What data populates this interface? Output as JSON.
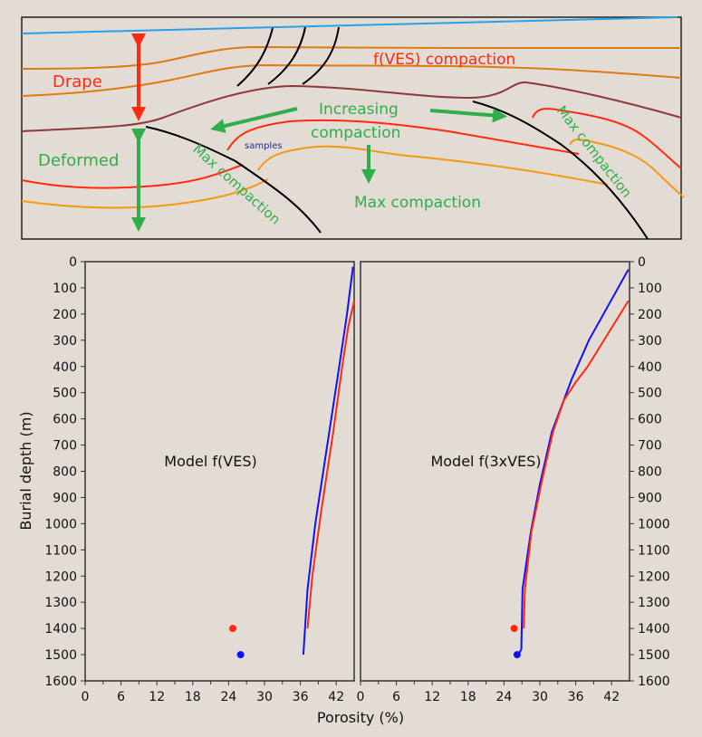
{
  "diagram": {
    "labels": {
      "drape": "Drape",
      "fves_compaction": "f(VES) compaction",
      "increasing": "Increasing",
      "compaction": "compaction",
      "deformed": "Deformed",
      "samples": "samples",
      "max_compaction_left": "Max compaction",
      "max_compaction_center": "Max compaction",
      "max_compaction_right": "Max compaction"
    },
    "colors": {
      "sea": "#2aa0e8",
      "horizon_orange": "#e07a10",
      "horizon_maroon": "#8b3a3a",
      "red": "#ff2a10",
      "amber": "#f59a10",
      "green": "#2fae4a",
      "fault": "#000000"
    }
  },
  "chart_data": [
    {
      "type": "line",
      "title": "Model f(VES)",
      "xlabel": "Porosity (%)",
      "ylabel": "Burial depth (m)",
      "xlim": [
        0,
        45
      ],
      "ylim": [
        1600,
        0
      ],
      "xticks": [
        0,
        6,
        12,
        18,
        24,
        30,
        36,
        42
      ],
      "yticks": [
        0,
        100,
        200,
        300,
        400,
        500,
        600,
        700,
        800,
        900,
        1000,
        1100,
        1200,
        1300,
        1400,
        1500,
        1600
      ],
      "series": [
        {
          "name": "blue-model",
          "color": "#1010ff",
          "points": [
            [
              36.5,
              1500
            ],
            [
              37.2,
              1250
            ],
            [
              38.5,
              1000
            ],
            [
              40.5,
              700
            ],
            [
              42.5,
              400
            ],
            [
              43.8,
              200
            ],
            [
              44.8,
              20
            ]
          ]
        },
        {
          "name": "red-model",
          "color": "#ff2a10",
          "points": [
            [
              37.2,
              1400
            ],
            [
              38,
              1200
            ],
            [
              39.5,
              950
            ],
            [
              41.5,
              650
            ],
            [
              43,
              400
            ],
            [
              44,
              250
            ],
            [
              45,
              150
            ]
          ]
        }
      ],
      "samples": [
        {
          "name": "red-sample",
          "color": "#ff2a10",
          "x": 24.7,
          "y": 1400
        },
        {
          "name": "blue-sample",
          "color": "#1010ff",
          "x": 26.0,
          "y": 1500
        }
      ]
    },
    {
      "type": "line",
      "title": "Model f(3xVES)",
      "xlabel": "Porosity (%)",
      "ylabel": "Burial depth (m)",
      "xlim": [
        0,
        45
      ],
      "ylim": [
        1600,
        0
      ],
      "xticks": [
        0,
        6,
        12,
        18,
        24,
        30,
        36,
        42
      ],
      "yticks": [
        0,
        100,
        200,
        300,
        400,
        500,
        600,
        700,
        800,
        900,
        1000,
        1100,
        1200,
        1300,
        1400,
        1500,
        1600
      ],
      "series": [
        {
          "name": "blue-model",
          "color": "#1010ff",
          "points": [
            [
              26.4,
              1500
            ],
            [
              26.9,
              1480
            ],
            [
              27.1,
              1250
            ],
            [
              28.5,
              1030
            ],
            [
              30,
              850
            ],
            [
              32,
              650
            ],
            [
              35.3,
              450
            ],
            [
              38.2,
              300
            ],
            [
              44.8,
              30
            ]
          ]
        },
        {
          "name": "red-model",
          "color": "#ff2a10",
          "points": [
            [
              27.3,
              1400
            ],
            [
              27.5,
              1250
            ],
            [
              28.6,
              1030
            ],
            [
              30.5,
              820
            ],
            [
              32.2,
              650
            ],
            [
              34,
              530
            ],
            [
              36,
              460
            ],
            [
              38,
              400
            ],
            [
              44.8,
              150
            ]
          ]
        }
      ],
      "samples": [
        {
          "name": "red-sample",
          "color": "#ff2a10",
          "x": 25.7,
          "y": 1400
        },
        {
          "name": "blue-sample",
          "color": "#1010ff",
          "x": 26.2,
          "y": 1500
        }
      ]
    }
  ]
}
